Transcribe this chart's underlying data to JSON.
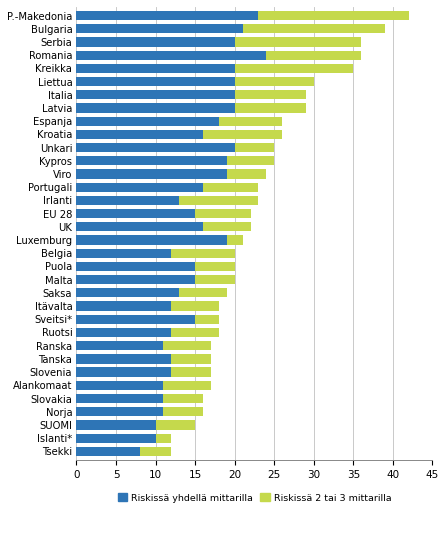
{
  "countries": [
    "P.-Makedonia",
    "Bulgaria",
    "Serbia",
    "Romania",
    "Kreikka",
    "Liettua",
    "Italia",
    "Latvia",
    "Espanja",
    "Kroatia",
    "Unkari",
    "Kypros",
    "Viro",
    "Portugali",
    "Irlanti",
    "EU 28",
    "UK",
    "Luxemburg",
    "Belgia",
    "Puola",
    "Malta",
    "Saksa",
    "Itävalta",
    "Sveitsi*",
    "Ruotsi",
    "Ranska",
    "Tanska",
    "Slovenia",
    "Alankomaat",
    "Slovakia",
    "Norja",
    "SUOMI",
    "Islanti*",
    "Tsekki"
  ],
  "blue_values": [
    23,
    21,
    20,
    24,
    20,
    20,
    20,
    20,
    18,
    16,
    20,
    19,
    19,
    16,
    13,
    15,
    16,
    19,
    12,
    15,
    15,
    13,
    12,
    15,
    12,
    11,
    12,
    12,
    11,
    11,
    11,
    10,
    10,
    8
  ],
  "green_values": [
    19,
    18,
    16,
    12,
    15,
    10,
    9,
    9,
    8,
    10,
    5,
    6,
    5,
    7,
    10,
    7,
    6,
    2,
    8,
    5,
    5,
    6,
    6,
    3,
    6,
    6,
    5,
    5,
    6,
    5,
    5,
    5,
    2,
    4
  ],
  "blue_color": "#2E75B6",
  "green_color": "#C5D94C",
  "legend_blue": "Riskissä yhdellä mittarilla",
  "legend_green": "Riskissä 2 tai 3 mittarilla",
  "xlim": [
    0,
    45
  ],
  "xticks": [
    0,
    5,
    10,
    15,
    20,
    25,
    30,
    35,
    40,
    45
  ],
  "grid_color": "#C0C0C0",
  "background_color": "#FFFFFF",
  "bar_height": 0.7,
  "figsize": [
    4.46,
    5.41
  ],
  "dpi": 100
}
